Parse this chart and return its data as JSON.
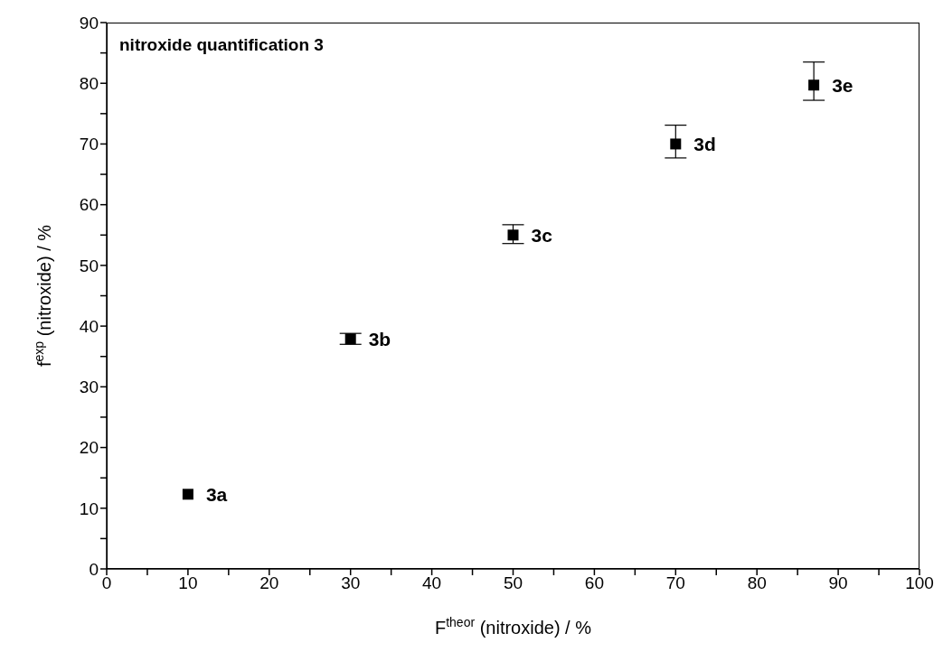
{
  "chart_data": {
    "type": "scatter",
    "title": "nitroxide quantification 3",
    "xlabel": "F$^{theor}$ (nitroxide) / %",
    "ylabel": "f$^{exp}$ (nitroxide) / %",
    "x": [
      10,
      30,
      50,
      70,
      87
    ],
    "series": [
      {
        "color": "#000000",
        "values": [
          12.3,
          37.9,
          55.0,
          70.0,
          79.7
        ],
        "errors": [
          null,
          0.9,
          [
            53.6,
            56.7
          ],
          [
            67.7,
            73.1
          ],
          [
            77.2,
            83.5
          ]
        ]
      }
    ],
    "marker": "square",
    "grid": false,
    "xlim": [
      0,
      100
    ],
    "xticks": [
      0,
      {
        "value": 5,
        "label": null
      },
      10,
      {
        "value": 15,
        "label": null
      },
      20,
      {
        "value": 25,
        "label": null
      },
      30,
      {
        "value": 35,
        "label": null
      },
      40,
      {
        "value": 45,
        "label": null
      },
      50,
      {
        "value": 55,
        "label": null
      },
      60,
      {
        "value": 65,
        "label": null
      },
      70,
      {
        "value": 75,
        "label": null
      },
      80,
      {
        "value": 85,
        "label": null
      },
      90,
      {
        "value": 95,
        "label": null
      },
      100
    ],
    "ylim": [
      0,
      90
    ],
    "yticks": [
      0,
      {
        "value": 5,
        "label": null
      },
      10,
      {
        "value": 15,
        "label": null
      },
      20,
      {
        "value": 25,
        "label": null
      },
      30,
      {
        "value": 35,
        "label": null
      },
      40,
      {
        "value": 45,
        "label": null
      },
      50,
      {
        "value": 55,
        "label": null
      },
      60,
      {
        "value": 65,
        "label": null
      },
      70,
      {
        "value": 75,
        "label": null
      },
      80,
      {
        "value": 85,
        "label": null
      },
      90
    ],
    "annotations": [
      {
        "text": "3a",
        "x": 10,
        "y": 12.3
      },
      {
        "text": "3b",
        "x": 30,
        "y": 37.9
      },
      {
        "text": "3c",
        "x": 50,
        "y": 55.0
      },
      {
        "text": "3d",
        "x": 70,
        "y": 70.0
      },
      {
        "text": "3e",
        "x": 87,
        "y": 79.7
      }
    ]
  }
}
